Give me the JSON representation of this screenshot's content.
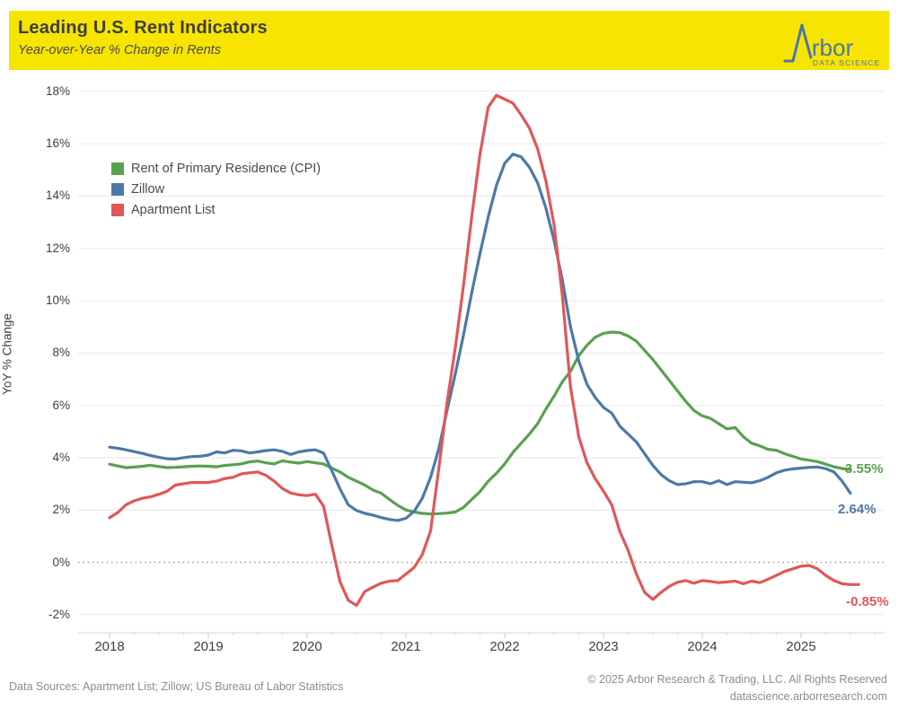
{
  "header": {
    "title": "Leading U.S. Rent Indicators",
    "subtitle": "Year-over-Year % Change in Rents",
    "background_color": "#F7E400",
    "logo": {
      "brand": "Arbor",
      "brand_visible_part": "rbor",
      "tagline": "DATA SCIENCE",
      "color": "#4878A8"
    }
  },
  "footer": {
    "sources": "Data Sources: Apartment List; Zillow; US Bureau of Labor Statistics",
    "copyright": "© 2025 Arbor Research & Trading, LLC. All Rights Reserved",
    "website": "datascience.arborresearch.com"
  },
  "chart_data": {
    "type": "line",
    "title": "Leading U.S. Rent Indicators",
    "subtitle": "Year-over-Year % Change in Rents",
    "ylabel": "YoY % Change",
    "x_start": "2018-01",
    "frequency": "monthly",
    "ylim": [
      -3,
      19
    ],
    "grid": "horizontal",
    "zero_line_style": "dotted",
    "legend_position": "inside-top-left",
    "yticks": [
      {
        "v": 18,
        "label": "18%"
      },
      {
        "v": 16,
        "label": "16%"
      },
      {
        "v": 14,
        "label": "14%"
      },
      {
        "v": 12,
        "label": "12%"
      },
      {
        "v": 10,
        "label": "10%"
      },
      {
        "v": 8,
        "label": "8%"
      },
      {
        "v": 6,
        "label": "6%"
      },
      {
        "v": 4,
        "label": "4%"
      },
      {
        "v": 2,
        "label": "2%"
      },
      {
        "v": 0,
        "label": "0%"
      },
      {
        "v": -2,
        "label": "-2%"
      }
    ],
    "xticks": [
      "2018",
      "2019",
      "2020",
      "2021",
      "2022",
      "2023",
      "2024",
      "2025"
    ],
    "series": [
      {
        "name": "Rent of Primary Residence (CPI)",
        "color": "#59A14F",
        "end_label": "3.55%",
        "values": [
          3.75,
          3.68,
          3.62,
          3.64,
          3.67,
          3.71,
          3.66,
          3.62,
          3.63,
          3.65,
          3.67,
          3.68,
          3.67,
          3.65,
          3.7,
          3.73,
          3.76,
          3.84,
          3.87,
          3.8,
          3.76,
          3.88,
          3.83,
          3.79,
          3.85,
          3.8,
          3.76,
          3.6,
          3.45,
          3.25,
          3.1,
          2.95,
          2.76,
          2.64,
          2.4,
          2.18,
          2.0,
          1.92,
          1.87,
          1.85,
          1.86,
          1.88,
          1.92,
          2.1,
          2.4,
          2.7,
          3.1,
          3.4,
          3.76,
          4.2,
          4.55,
          4.9,
          5.3,
          5.85,
          6.35,
          6.9,
          7.3,
          7.9,
          8.3,
          8.6,
          8.75,
          8.8,
          8.78,
          8.65,
          8.45,
          8.1,
          7.75,
          7.35,
          6.95,
          6.55,
          6.15,
          5.8,
          5.6,
          5.5,
          5.3,
          5.1,
          5.15,
          4.8,
          4.55,
          4.45,
          4.32,
          4.28,
          4.15,
          4.05,
          3.95,
          3.9,
          3.85,
          3.75,
          3.65,
          3.58,
          3.55
        ]
      },
      {
        "name": "Zillow",
        "color": "#4E79A7",
        "end_label": "2.64%",
        "values": [
          4.4,
          4.36,
          4.3,
          4.23,
          4.16,
          4.08,
          4.01,
          3.96,
          3.95,
          4.0,
          4.04,
          4.05,
          4.1,
          4.22,
          4.18,
          4.28,
          4.26,
          4.18,
          4.22,
          4.27,
          4.3,
          4.24,
          4.12,
          4.22,
          4.27,
          4.3,
          4.18,
          3.5,
          2.8,
          2.2,
          1.98,
          1.87,
          1.8,
          1.71,
          1.64,
          1.6,
          1.68,
          1.95,
          2.45,
          3.25,
          4.35,
          5.8,
          7.2,
          8.7,
          10.3,
          11.8,
          13.2,
          14.4,
          15.25,
          15.6,
          15.5,
          15.1,
          14.5,
          13.55,
          12.3,
          10.8,
          9.0,
          7.7,
          6.8,
          6.3,
          5.92,
          5.7,
          5.2,
          4.9,
          4.6,
          4.15,
          3.7,
          3.35,
          3.12,
          2.97,
          3.0,
          3.08,
          3.08,
          3.0,
          3.12,
          2.97,
          3.08,
          3.06,
          3.04,
          3.12,
          3.25,
          3.42,
          3.52,
          3.57,
          3.6,
          3.63,
          3.64,
          3.58,
          3.45,
          3.1,
          2.64
        ]
      },
      {
        "name": "Apartment List",
        "color": "#E15759",
        "end_label": "-0.85%",
        "values": [
          1.7,
          1.9,
          2.2,
          2.35,
          2.45,
          2.5,
          2.6,
          2.72,
          2.95,
          3.0,
          3.05,
          3.05,
          3.05,
          3.1,
          3.2,
          3.25,
          3.38,
          3.42,
          3.45,
          3.32,
          3.1,
          2.82,
          2.65,
          2.58,
          2.55,
          2.6,
          2.15,
          0.65,
          -0.75,
          -1.45,
          -1.65,
          -1.12,
          -0.95,
          -0.8,
          -0.72,
          -0.7,
          -0.45,
          -0.2,
          0.3,
          1.2,
          3.6,
          6.1,
          8.2,
          10.6,
          13.2,
          15.6,
          17.4,
          17.85,
          17.7,
          17.55,
          17.1,
          16.6,
          15.8,
          14.6,
          12.9,
          10.2,
          6.7,
          4.8,
          3.8,
          3.2,
          2.72,
          2.2,
          1.17,
          0.45,
          -0.45,
          -1.15,
          -1.42,
          -1.15,
          -0.92,
          -0.76,
          -0.7,
          -0.8,
          -0.7,
          -0.73,
          -0.78,
          -0.75,
          -0.72,
          -0.82,
          -0.72,
          -0.78,
          -0.65,
          -0.5,
          -0.35,
          -0.25,
          -0.15,
          -0.12,
          -0.25,
          -0.5,
          -0.7,
          -0.82,
          -0.85,
          -0.85
        ]
      }
    ]
  }
}
